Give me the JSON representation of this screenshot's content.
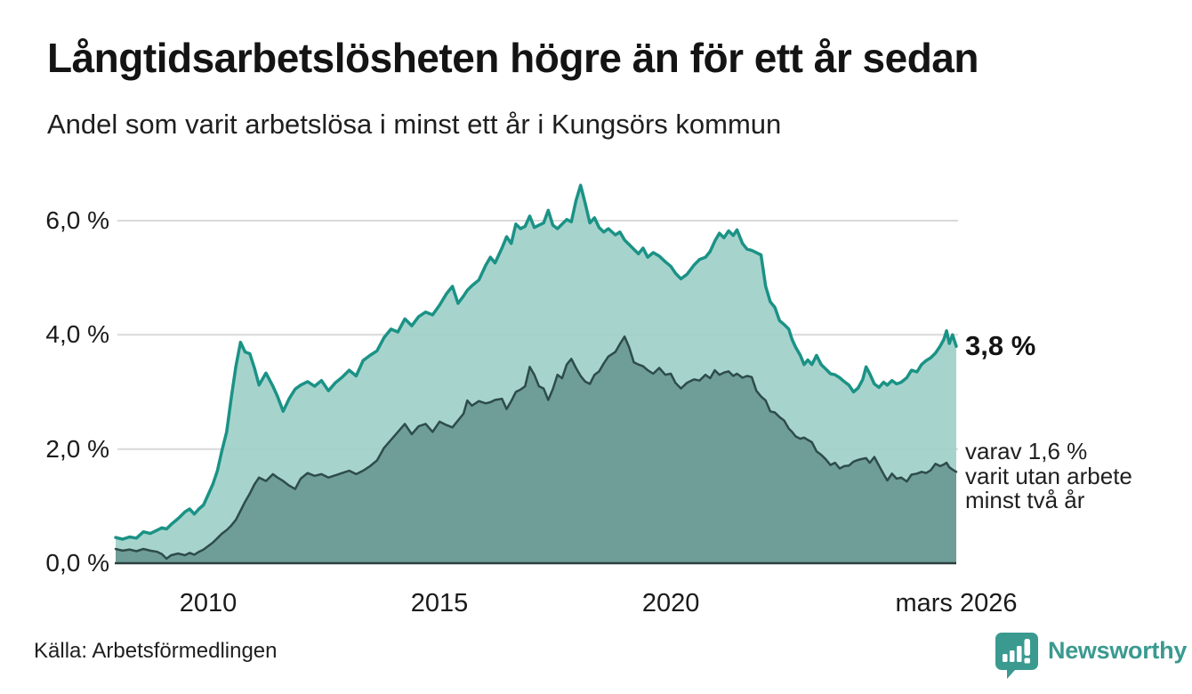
{
  "header": {
    "title": "Långtidsarbetslösheten högre än för ett år sedan",
    "subtitle": "Andel som varit arbetslösa i minst ett år i Kungsörs kommun"
  },
  "chart_data": {
    "type": "area",
    "title": "Långtidsarbetslösheten högre än för ett år sedan",
    "subtitle": "Andel som varit arbetslösa i minst ett år i Kungsörs kommun",
    "ylabel": "",
    "xlabel": "",
    "ylim": [
      0,
      6.9
    ],
    "grid": "horizontal",
    "legend": "none",
    "y_ticks": [
      {
        "value": 0,
        "label": "0,0 %"
      },
      {
        "value": 2,
        "label": "2,0 %"
      },
      {
        "value": 4,
        "label": "4,0 %"
      },
      {
        "value": 6,
        "label": "6,0 %"
      }
    ],
    "x_ticks": [
      {
        "value": 2010,
        "label": "2010"
      },
      {
        "value": 2015,
        "label": "2015"
      },
      {
        "value": 2020,
        "label": "2020"
      },
      {
        "value": 2026.17,
        "label": "mars 2026"
      }
    ],
    "colors": {
      "grid": "#d9d9d9",
      "baseline": "#2c403f"
    },
    "x": [
      2008.0,
      2008.15,
      2008.3,
      2008.45,
      2008.6,
      2008.75,
      2008.9,
      2009.0,
      2009.1,
      2009.2,
      2009.35,
      2009.5,
      2009.6,
      2009.7,
      2009.8,
      2009.9,
      2010.0,
      2010.1,
      2010.2,
      2010.3,
      2010.4,
      2010.5,
      2010.6,
      2010.7,
      2010.8,
      2010.9,
      2011.0,
      2011.1,
      2011.25,
      2011.4,
      2011.5,
      2011.62,
      2011.75,
      2011.88,
      2012.0,
      2012.15,
      2012.3,
      2012.45,
      2012.6,
      2012.75,
      2012.9,
      2013.05,
      2013.2,
      2013.35,
      2013.5,
      2013.65,
      2013.8,
      2013.95,
      2014.1,
      2014.25,
      2014.4,
      2014.55,
      2014.7,
      2014.85,
      2015.0,
      2015.15,
      2015.28,
      2015.4,
      2015.52,
      2015.6,
      2015.7,
      2015.85,
      2016.0,
      2016.1,
      2016.2,
      2016.35,
      2016.45,
      2016.55,
      2016.65,
      2016.75,
      2016.85,
      2016.95,
      2017.05,
      2017.15,
      2017.25,
      2017.35,
      2017.45,
      2017.55,
      2017.65,
      2017.75,
      2017.85,
      2017.95,
      2018.05,
      2018.15,
      2018.25,
      2018.35,
      2018.45,
      2018.55,
      2018.65,
      2018.8,
      2018.9,
      2019.0,
      2019.1,
      2019.2,
      2019.3,
      2019.4,
      2019.5,
      2019.62,
      2019.75,
      2019.88,
      2020.0,
      2020.1,
      2020.22,
      2020.35,
      2020.5,
      2020.62,
      2020.75,
      2020.85,
      2020.95,
      2021.05,
      2021.15,
      2021.25,
      2021.35,
      2021.43,
      2021.55,
      2021.65,
      2021.75,
      2021.85,
      2021.95,
      2022.05,
      2022.15,
      2022.25,
      2022.35,
      2022.45,
      2022.55,
      2022.62,
      2022.7,
      2022.8,
      2022.88,
      2022.96,
      2023.05,
      2023.15,
      2023.25,
      2023.35,
      2023.45,
      2023.55,
      2023.65,
      2023.75,
      2023.85,
      2023.95,
      2024.05,
      2024.15,
      2024.22,
      2024.3,
      2024.4,
      2024.5,
      2024.6,
      2024.68,
      2024.78,
      2024.88,
      2024.98,
      2025.1,
      2025.2,
      2025.32,
      2025.42,
      2025.52,
      2025.62,
      2025.72,
      2025.82,
      2025.9,
      2025.96,
      2026.02,
      2026.09,
      2026.17
    ],
    "series": [
      {
        "name": "Varit arbetslösa minst ett år",
        "line_color": "#1b9286",
        "fill_color": "#9ccfc8",
        "fill_opacity": 0.9,
        "line_width": 3.5,
        "end_value": "3,8 %",
        "values": [
          0.45,
          0.42,
          0.46,
          0.44,
          0.55,
          0.52,
          0.58,
          0.62,
          0.6,
          0.68,
          0.78,
          0.9,
          0.95,
          0.86,
          0.95,
          1.02,
          1.2,
          1.38,
          1.62,
          1.98,
          2.3,
          2.9,
          3.45,
          3.87,
          3.7,
          3.67,
          3.42,
          3.12,
          3.33,
          3.1,
          2.92,
          2.66,
          2.88,
          3.05,
          3.12,
          3.18,
          3.1,
          3.2,
          3.02,
          3.16,
          3.26,
          3.38,
          3.28,
          3.55,
          3.64,
          3.72,
          3.95,
          4.1,
          4.05,
          4.28,
          4.16,
          4.32,
          4.4,
          4.35,
          4.52,
          4.72,
          4.85,
          4.55,
          4.68,
          4.78,
          4.86,
          4.96,
          5.22,
          5.36,
          5.26,
          5.52,
          5.72,
          5.6,
          5.94,
          5.86,
          5.9,
          6.08,
          5.88,
          5.92,
          5.96,
          6.18,
          5.92,
          5.86,
          5.94,
          6.02,
          5.98,
          6.35,
          6.62,
          6.3,
          5.96,
          6.05,
          5.88,
          5.8,
          5.86,
          5.75,
          5.8,
          5.66,
          5.58,
          5.5,
          5.42,
          5.52,
          5.36,
          5.44,
          5.38,
          5.28,
          5.2,
          5.08,
          4.98,
          5.06,
          5.22,
          5.32,
          5.36,
          5.46,
          5.64,
          5.78,
          5.7,
          5.82,
          5.74,
          5.84,
          5.6,
          5.5,
          5.48,
          5.44,
          5.4,
          4.85,
          4.58,
          4.48,
          4.25,
          4.18,
          4.1,
          3.92,
          3.78,
          3.64,
          3.48,
          3.56,
          3.48,
          3.64,
          3.48,
          3.4,
          3.32,
          3.3,
          3.25,
          3.18,
          3.12,
          3.0,
          3.07,
          3.22,
          3.44,
          3.32,
          3.14,
          3.08,
          3.17,
          3.12,
          3.2,
          3.14,
          3.17,
          3.25,
          3.38,
          3.35,
          3.48,
          3.55,
          3.6,
          3.68,
          3.8,
          3.92,
          4.07,
          3.85,
          4.0,
          3.8
        ]
      },
      {
        "name": "Varav varit utan arbete minst två år",
        "line_color": "#2e4c4a",
        "fill_color": "#6f9d97",
        "fill_opacity": 1,
        "line_width": 2.5,
        "end_value": "1,6 %",
        "values": [
          0.25,
          0.22,
          0.24,
          0.21,
          0.25,
          0.22,
          0.2,
          0.16,
          0.08,
          0.14,
          0.17,
          0.14,
          0.18,
          0.15,
          0.2,
          0.24,
          0.3,
          0.36,
          0.44,
          0.52,
          0.58,
          0.66,
          0.76,
          0.92,
          1.08,
          1.22,
          1.38,
          1.5,
          1.44,
          1.56,
          1.5,
          1.44,
          1.36,
          1.3,
          1.48,
          1.58,
          1.53,
          1.56,
          1.5,
          1.54,
          1.58,
          1.62,
          1.56,
          1.62,
          1.7,
          1.8,
          2.02,
          2.16,
          2.3,
          2.44,
          2.26,
          2.4,
          2.44,
          2.3,
          2.48,
          2.42,
          2.38,
          2.5,
          2.62,
          2.85,
          2.76,
          2.84,
          2.8,
          2.82,
          2.86,
          2.88,
          2.7,
          2.84,
          3.0,
          3.04,
          3.1,
          3.44,
          3.3,
          3.1,
          3.06,
          2.86,
          3.05,
          3.3,
          3.24,
          3.48,
          3.58,
          3.42,
          3.28,
          3.18,
          3.14,
          3.3,
          3.36,
          3.5,
          3.62,
          3.7,
          3.84,
          3.97,
          3.78,
          3.52,
          3.48,
          3.45,
          3.38,
          3.32,
          3.42,
          3.3,
          3.32,
          3.16,
          3.06,
          3.16,
          3.22,
          3.2,
          3.3,
          3.24,
          3.38,
          3.3,
          3.34,
          3.36,
          3.28,
          3.32,
          3.25,
          3.28,
          3.26,
          3.02,
          2.92,
          2.85,
          2.66,
          2.64,
          2.56,
          2.5,
          2.36,
          2.3,
          2.22,
          2.18,
          2.2,
          2.16,
          2.12,
          1.96,
          1.9,
          1.82,
          1.72,
          1.76,
          1.66,
          1.7,
          1.71,
          1.78,
          1.81,
          1.83,
          1.84,
          1.76,
          1.86,
          1.71,
          1.56,
          1.45,
          1.57,
          1.48,
          1.5,
          1.43,
          1.55,
          1.57,
          1.6,
          1.58,
          1.63,
          1.74,
          1.7,
          1.73,
          1.76,
          1.68,
          1.64,
          1.6
        ]
      }
    ],
    "annotations": {
      "end_label": "3,8 %",
      "detail_lines": [
        "varav 1,6 %",
        "varit utan arbete",
        "minst två år"
      ]
    }
  },
  "footer": {
    "source": "Källa: Arbetsförmedlingen",
    "brand": "Newsworthy",
    "brand_color": "#3a9a90"
  }
}
